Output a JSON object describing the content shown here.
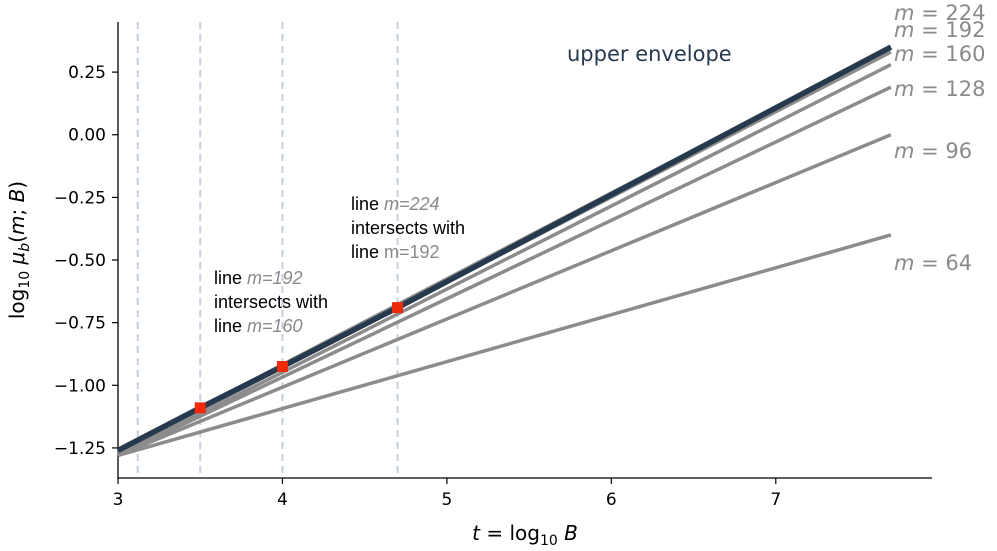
{
  "chart_data": {
    "type": "line",
    "title": "",
    "xlabel": "t = log10 B",
    "ylabel": "log10 μb(m; B)",
    "xlim": [
      3.0,
      7.95
    ],
    "ylim": [
      -1.37,
      0.45
    ],
    "xticks": [
      3,
      4,
      5,
      6,
      7
    ],
    "xtick_labels": [
      "3",
      "4",
      "5",
      "6",
      "7"
    ],
    "yticks": [
      -1.25,
      -1.0,
      -0.75,
      -0.5,
      -0.25,
      0.0,
      0.25
    ],
    "ytick_labels": [
      "−1.25",
      "−1.00",
      "−0.75",
      "−0.50",
      "−0.25",
      "0.00",
      "0.25"
    ],
    "grid": false,
    "series": [
      {
        "name": "m = 64",
        "x": [
          3.0,
          7.7
        ],
        "y": [
          -1.28,
          -0.4
        ],
        "color": "#8c8c8c"
      },
      {
        "name": "m = 96",
        "x": [
          3.0,
          7.7
        ],
        "y": [
          -1.28,
          0.0
        ],
        "color": "#8c8c8c"
      },
      {
        "name": "m = 128",
        "x": [
          3.0,
          7.7
        ],
        "y": [
          -1.28,
          0.19
        ],
        "color": "#8c8c8c"
      },
      {
        "name": "m = 160",
        "x": [
          3.0,
          7.7
        ],
        "y": [
          -1.28,
          0.28
        ],
        "color": "#8c8c8c"
      },
      {
        "name": "m = 192",
        "x": [
          3.0,
          7.7
        ],
        "y": [
          -1.27,
          0.33
        ],
        "color": "#8c8c8c"
      },
      {
        "name": "m = 224",
        "x": [
          3.0,
          7.7
        ],
        "y": [
          -1.26,
          0.35
        ],
        "color": "#8c8c8c"
      }
    ],
    "upper_envelope": {
      "label": "upper envelope",
      "x": [
        3.0,
        3.5,
        4.0,
        4.7,
        7.7
      ],
      "y": [
        -1.26,
        -1.09,
        -0.925,
        -0.69,
        0.35
      ],
      "color": "#26394d"
    },
    "vertical_lines": [
      3.12,
      3.5,
      4.0,
      4.7
    ],
    "vline_color": "#c5cfdd",
    "intersections": [
      {
        "x": 3.5,
        "y": -1.09
      },
      {
        "x": 4.0,
        "y": -0.925
      },
      {
        "x": 4.7,
        "y": -0.69
      }
    ],
    "marker_color": "#ee2a0a",
    "series_labels": [
      {
        "m": "m",
        "eq": " = 224"
      },
      {
        "m": "m",
        "eq": " = 192"
      },
      {
        "m": "m",
        "eq": " = 160"
      },
      {
        "m": "m",
        "eq": " = 128"
      },
      {
        "m": "m",
        "eq": " = 96"
      },
      {
        "m": "m",
        "eq": " = 64"
      }
    ],
    "annotations": [
      {
        "line1_a": "line ",
        "line1_b": "m=192",
        "line2": "intersects with",
        "line3_a": "line ",
        "line3_b": "m=160"
      },
      {
        "line1_a": "line ",
        "line1_b": "m=224",
        "line2": "intersects with",
        "line3_a": "line ",
        "line3_b": "m=192"
      }
    ]
  }
}
